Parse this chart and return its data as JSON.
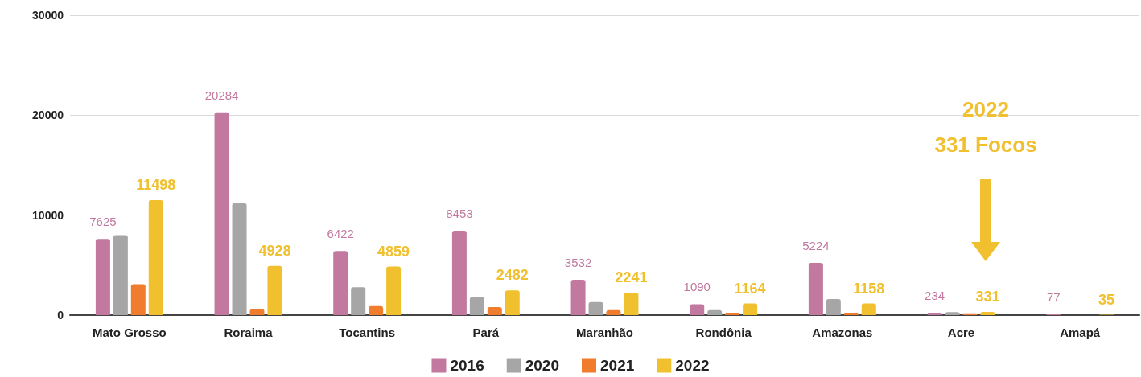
{
  "chart_data": {
    "type": "bar",
    "categories": [
      "Mato Grosso",
      "Roraima",
      "Tocantins",
      "Pará",
      "Maranhão",
      "Rondônia",
      "Amazonas",
      "Acre",
      "Amapá"
    ],
    "series": [
      {
        "name": "2016",
        "color": "#c2789f",
        "values": [
          7625,
          20284,
          6422,
          8453,
          3532,
          1090,
          5224,
          234,
          77
        ],
        "value_labels": [
          "7625",
          "20284",
          "6422",
          "8453",
          "3532",
          "1090",
          "5224",
          "234",
          "77"
        ]
      },
      {
        "name": "2020",
        "color": "#a6a6a6",
        "values": [
          8000,
          11200,
          2800,
          1800,
          1300,
          500,
          1600,
          300,
          0
        ]
      },
      {
        "name": "2021",
        "color": "#ef7d2d",
        "values": [
          3100,
          600,
          900,
          800,
          500,
          200,
          200,
          100,
          0
        ]
      },
      {
        "name": "2022",
        "color": "#f0c02f",
        "values": [
          11498,
          4928,
          4859,
          2482,
          2241,
          1164,
          1158,
          331,
          35
        ],
        "value_labels": [
          "11498",
          "4928",
          "4859",
          "2482",
          "2241",
          "1164",
          "1158",
          "331",
          "35"
        ]
      }
    ],
    "ylim": [
      0,
      30000
    ],
    "yticks": [
      0,
      10000,
      20000,
      30000
    ],
    "grid": "y",
    "legend": "bottom",
    "annotations": [
      "2022",
      "331 Focos"
    ]
  }
}
